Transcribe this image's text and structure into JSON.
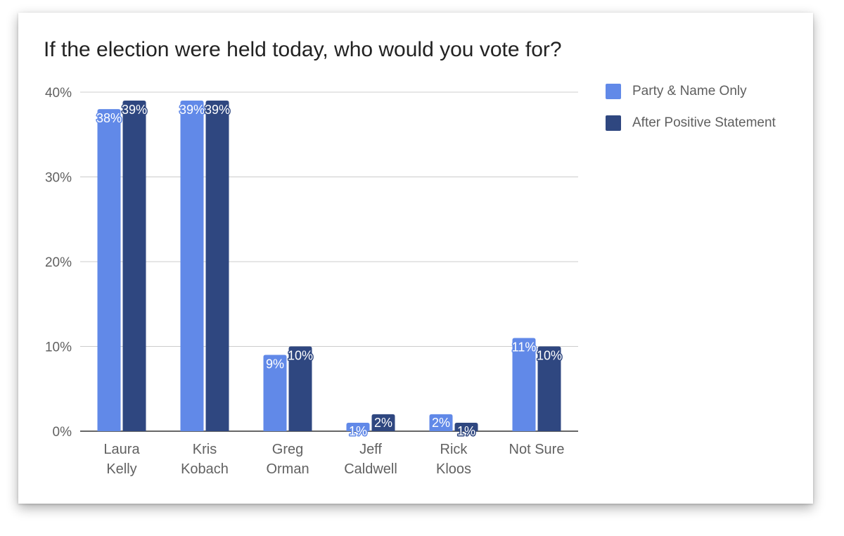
{
  "chart_data": {
    "type": "bar",
    "title": "If the election were held today, who would you vote for?",
    "categories": [
      [
        "Laura",
        "Kelly"
      ],
      [
        "Kris",
        "Kobach"
      ],
      [
        "Greg",
        "Orman"
      ],
      [
        "Jeff",
        "Caldwell"
      ],
      [
        "Rick",
        "Kloos"
      ],
      [
        "Not Sure"
      ]
    ],
    "series": [
      {
        "name": "Party & Name Only",
        "color": "#6189e8",
        "values": [
          38,
          39,
          9,
          1,
          2,
          11
        ]
      },
      {
        "name": "After Positive Statement",
        "color": "#2f4780",
        "values": [
          39,
          39,
          10,
          2,
          1,
          10
        ]
      }
    ],
    "ylim": [
      0,
      40
    ],
    "yticks": [
      0,
      10,
      20,
      30,
      40
    ],
    "value_suffix": "%",
    "grid": true,
    "legend_position": "right"
  }
}
